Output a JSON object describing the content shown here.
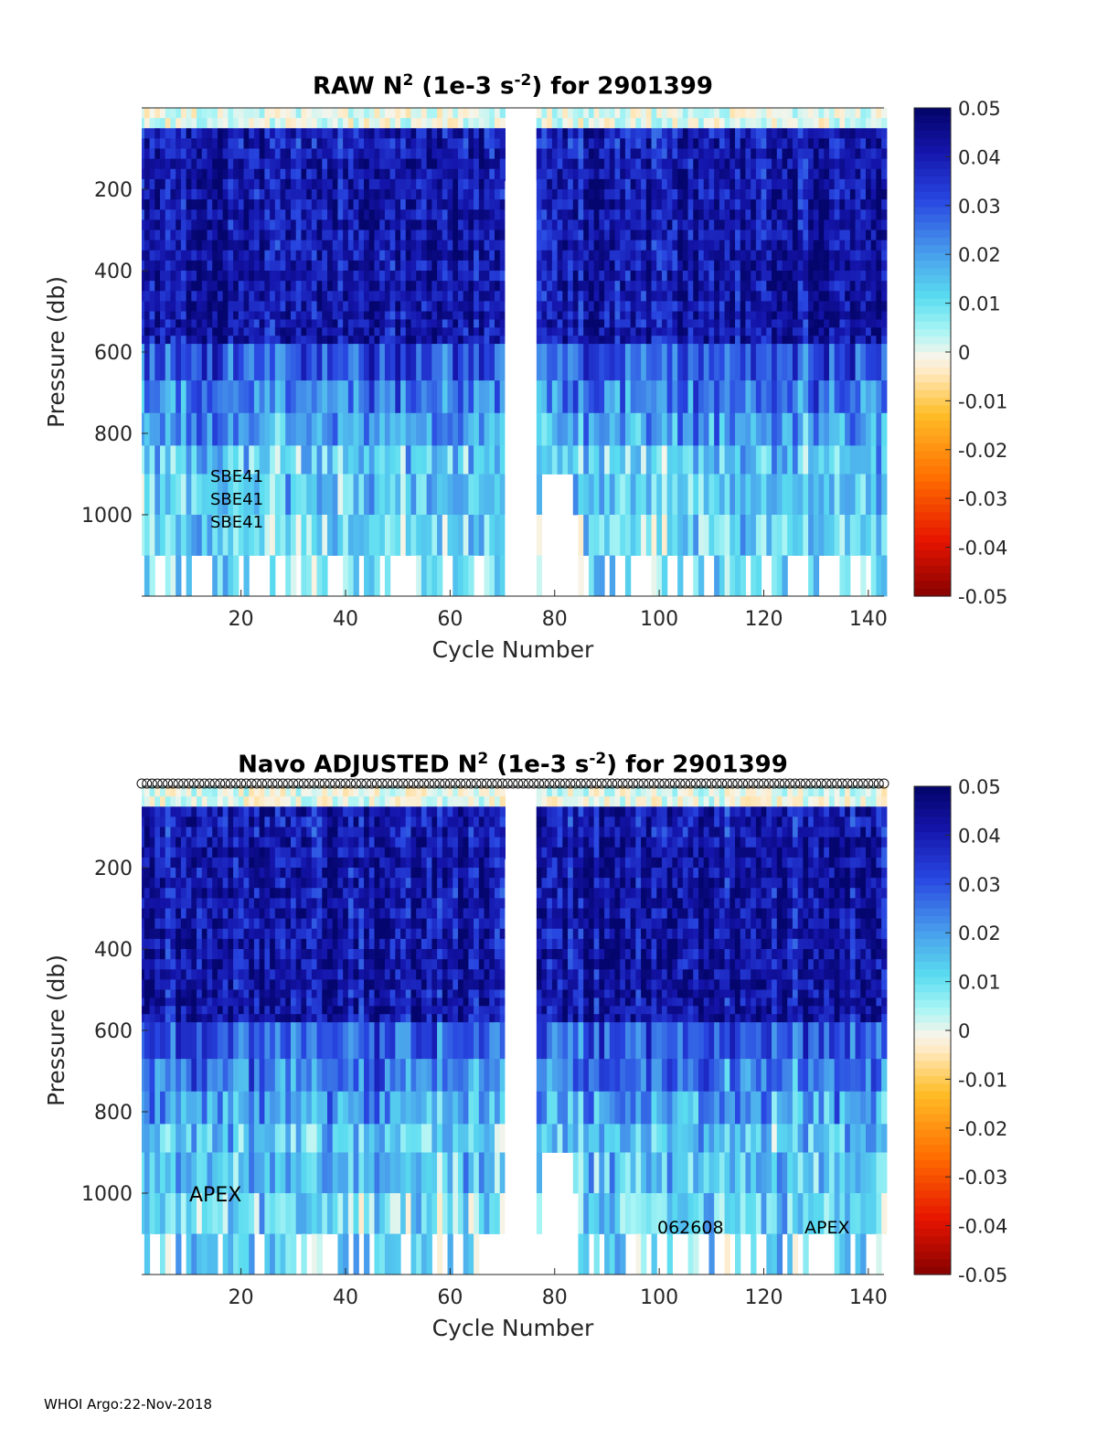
{
  "colors": {
    "background": "#ffffff",
    "deep_blue": "#0a0a7a",
    "mid_blue": "#2a3fe0",
    "light_blue": "#5fa6ee",
    "cyan": "#7ee8f4",
    "gap": "#ffffff"
  },
  "chart_data": [
    {
      "type": "heatmap",
      "title_main": "RAW N",
      "title_sup": "2",
      "title_mid": " (1e-3 s",
      "title_sup2": "-2",
      "title_tail": ") for 2901399",
      "xlabel": "Cycle Number",
      "ylabel": "Pressure (db)",
      "xlim": [
        1,
        143
      ],
      "ylim": [
        0,
        1200
      ],
      "y_reversed": true,
      "xticks": [
        20,
        40,
        60,
        80,
        100,
        120,
        140
      ],
      "yticks": [
        200,
        400,
        600,
        800,
        1000
      ],
      "colorbar": {
        "range": [
          -0.05,
          0.05
        ],
        "ticks": [
          "0.05",
          "0.04",
          "0.03",
          "0.02",
          "0.01",
          "0",
          "-0.01",
          "-0.02",
          "-0.03",
          "-0.04",
          "-0.05"
        ]
      },
      "gap_cycles": [
        71,
        72,
        73,
        74,
        75,
        76
      ],
      "annotations": [
        "SBE41",
        "SBE41",
        "SBE41"
      ],
      "band_depths_db": [
        0,
        100,
        200,
        300,
        400,
        500,
        580,
        670,
        750,
        830,
        900,
        1000,
        1100,
        1200
      ]
    },
    {
      "type": "heatmap",
      "title_main": "Navo  ADJUSTED N",
      "title_sup": "2",
      "title_mid": " (1e-3 s",
      "title_sup2": "-2",
      "title_tail": ") for 2901399",
      "xlabel": "Cycle Number",
      "ylabel": "Pressure (db)",
      "xlim": [
        1,
        143
      ],
      "ylim": [
        0,
        1200
      ],
      "y_reversed": true,
      "xticks": [
        20,
        40,
        60,
        80,
        100,
        120,
        140
      ],
      "yticks": [
        200,
        400,
        600,
        800,
        1000
      ],
      "colorbar": {
        "range": [
          -0.05,
          0.05
        ],
        "ticks": [
          "0.05",
          "0.04",
          "0.03",
          "0.02",
          "0.01",
          "0",
          "-0.01",
          "-0.02",
          "-0.03",
          "-0.04",
          "-0.05"
        ]
      },
      "gap_cycles": [
        71,
        72,
        73,
        74,
        75,
        76
      ],
      "qc_marker_row": "o",
      "annotations": [
        "APEX",
        "062608",
        "APEX"
      ],
      "band_depths_db": [
        0,
        100,
        200,
        300,
        400,
        500,
        580,
        670,
        750,
        830,
        900,
        1000,
        1100,
        1200
      ]
    }
  ],
  "footer": "WHOI Argo:22-Nov-2018"
}
